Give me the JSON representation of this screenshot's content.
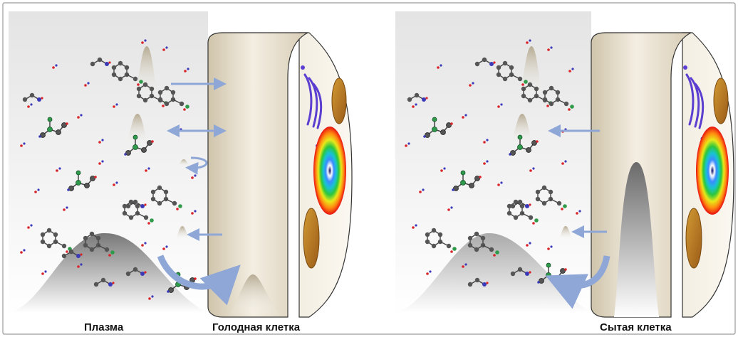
{
  "labels": {
    "plasma": "Плазма",
    "hungry_cell": "Голодная клетка",
    "fed_cell": "Сытая клетка"
  },
  "colors": {
    "membrane": "#e6dcc8",
    "arrow": "#8fa7d6",
    "golgi": "#5a3fd0",
    "mitochondria": "#b8861f",
    "carbon_atom": "#555555",
    "nitrogen_atom": "#2e9a4a",
    "oxygen_atom": "#d9242a",
    "hydrogen_atom": "#3a3ab8"
  },
  "icons": [
    "amino-acid-molecule",
    "transport-arrow",
    "nucleus",
    "golgi-apparatus",
    "mitochondrion",
    "concentration-gradient"
  ]
}
